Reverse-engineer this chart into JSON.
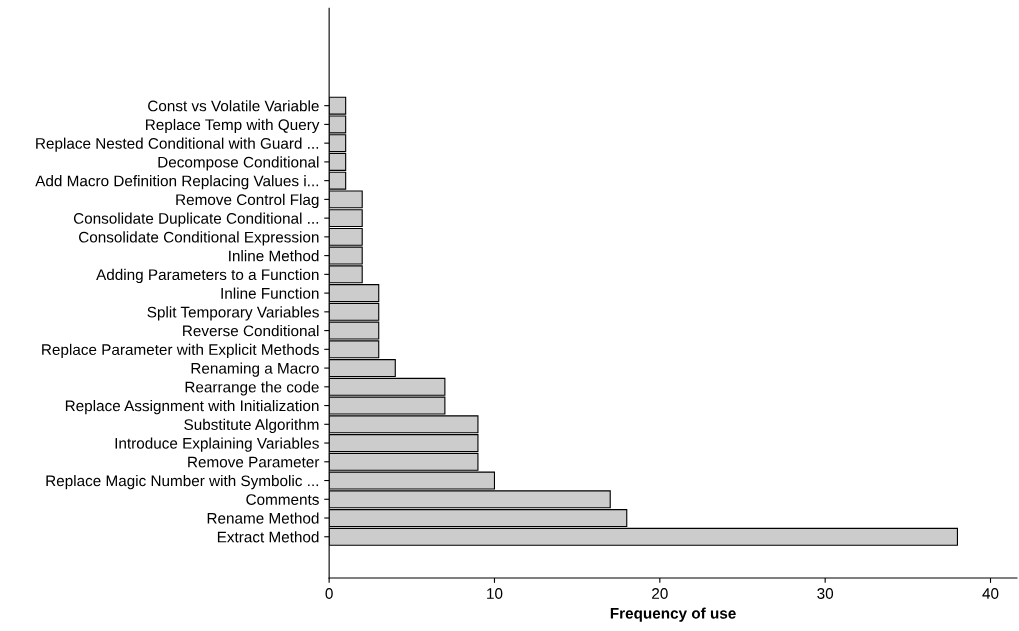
{
  "chart_data": {
    "type": "bar",
    "orientation": "horizontal",
    "xlabel": "Frequency of use",
    "categories": [
      "Const vs Volatile Variable",
      "Replace Temp with Query",
      "Replace Nested Conditional with Guard ...",
      "Decompose Conditional",
      "Add Macro Definition Replacing Values i...",
      "Remove Control Flag",
      "Consolidate Duplicate Conditional ...",
      "Consolidate Conditional Expression",
      "Inline Method",
      "Adding Parameters to a Function",
      "Inline Function",
      "Split Temporary Variables",
      "Reverse Conditional",
      "Replace Parameter with Explicit Methods",
      "Renaming a Macro",
      "Rearrange the code",
      "Replace Assignment with Initialization",
      "Substitute Algorithm",
      "Introduce Explaining Variables",
      "Remove Parameter",
      "Replace Magic Number with Symbolic ...",
      "Comments",
      "Rename Method",
      "Extract Method"
    ],
    "values": [
      1,
      1,
      1,
      1,
      1,
      2,
      2,
      2,
      2,
      2,
      3,
      3,
      3,
      3,
      4,
      7,
      7,
      9,
      9,
      9,
      10,
      17,
      18,
      38
    ],
    "color": "#cccccc",
    "xlim": [
      0,
      41.6
    ],
    "xticks": [
      0,
      10,
      20,
      30,
      40
    ],
    "grid": false,
    "legend": false
  }
}
